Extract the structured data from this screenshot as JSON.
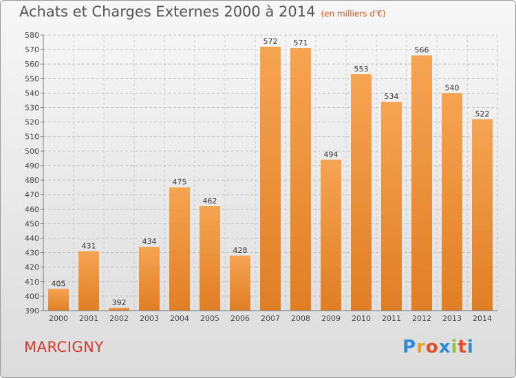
{
  "header": {
    "title": "Achats et Charges Externes 2000 à 2014",
    "unit": "(en milliers d'€)"
  },
  "footer": {
    "commune": "MARCIGNY",
    "logo_letters": [
      "P",
      "r",
      "o",
      "x",
      "i",
      "t",
      "i"
    ],
    "logo_colors": [
      "#2d8bd6",
      "#e9a322",
      "#e04e2a",
      "#2d8bd6",
      "#8cc63f",
      "#e04e2a",
      "#2d8bd6"
    ]
  },
  "chart_data": {
    "type": "bar",
    "categories": [
      "2000",
      "2001",
      "2002",
      "2003",
      "2004",
      "2005",
      "2006",
      "2007",
      "2008",
      "2009",
      "2010",
      "2011",
      "2012",
      "2013",
      "2014"
    ],
    "values": [
      405,
      431,
      392,
      434,
      475,
      462,
      428,
      572,
      571,
      494,
      553,
      534,
      566,
      540,
      522
    ],
    "title": "Achats et Charges Externes 2000 à 2014",
    "xlabel": "",
    "ylabel": "",
    "ylim": [
      390,
      580
    ],
    "ytick_step": 10,
    "grid": true,
    "bar_color_top": "#f6a452",
    "bar_color_bottom": "#e07e24"
  }
}
